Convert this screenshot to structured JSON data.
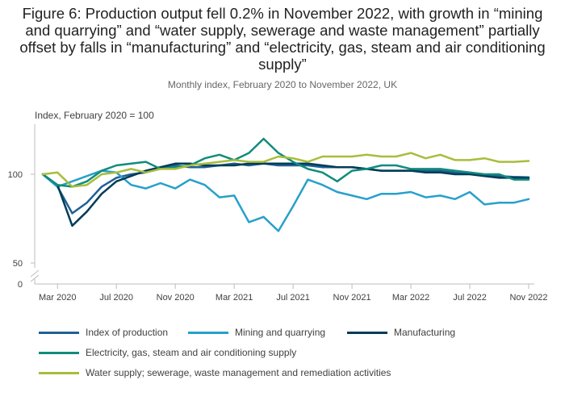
{
  "title": "Figure 6: Production output fell 0.2% in November 2022, with growth in “mining and quarrying” and “water supply, sewerage and waste management” partially offset by falls in “manufacturing” and “electricity, gas, steam and air conditioning supply”",
  "subtitle": "Monthly index, February 2020 to November 2022, UK",
  "chart_data": {
    "type": "line",
    "title": "Figure 6: Production output fell 0.2% in November 2022, with growth in “mining and quarrying” and “water supply, sewerage and waste management” partially offset by falls in “manufacturing” and “electricity, gas, steam and air conditioning supply”",
    "subtitle": "Monthly index, February 2020 to November 2022, UK",
    "ylabel": "Index, February 2020 = 100",
    "xlabel": "",
    "x": [
      "Feb 2020",
      "Mar 2020",
      "Apr 2020",
      "May 2020",
      "Jun 2020",
      "Jul 2020",
      "Aug 2020",
      "Sep 2020",
      "Oct 2020",
      "Nov 2020",
      "Dec 2020",
      "Jan 2021",
      "Feb 2021",
      "Mar 2021",
      "Apr 2021",
      "May 2021",
      "Jun 2021",
      "Jul 2021",
      "Aug 2021",
      "Sep 2021",
      "Oct 2021",
      "Nov 2021",
      "Dec 2021",
      "Jan 2022",
      "Feb 2022",
      "Mar 2022",
      "Apr 2022",
      "May 2022",
      "Jun 2022",
      "Jul 2022",
      "Aug 2022",
      "Sep 2022",
      "Oct 2022",
      "Nov 2022"
    ],
    "x_ticks": [
      "Mar 2020",
      "Jul 2020",
      "Nov 2020",
      "Mar 2021",
      "Jul 2021",
      "Nov 2021",
      "Mar 2022",
      "Jul 2022",
      "Nov 2022"
    ],
    "y_ticks": [
      0,
      50,
      100
    ],
    "axis_break": true,
    "ylim": [
      0,
      125
    ],
    "grid": false,
    "legend_position": "bottom",
    "series": [
      {
        "name": "Index of production",
        "color": "#206095",
        "values": [
          100,
          93,
          78,
          84,
          93,
          98,
          100,
          101,
          104,
          105,
          104,
          104,
          105,
          106,
          105,
          106,
          105,
          105,
          105,
          104,
          104,
          104,
          103,
          102,
          102,
          102,
          102,
          102,
          101,
          101,
          99,
          99,
          98.5,
          98.3
        ]
      },
      {
        "name": "Mining and quarrying",
        "color": "#27a0cc",
        "values": [
          100,
          93,
          96,
          99,
          102,
          101,
          94,
          92,
          95,
          92,
          97,
          94,
          87,
          88,
          73,
          76,
          68,
          82,
          97,
          94,
          90,
          88,
          86,
          89,
          89,
          90,
          87,
          88,
          86,
          90,
          83,
          84,
          84,
          86
        ]
      },
      {
        "name": "Manufacturing",
        "color": "#003c57",
        "values": [
          100,
          94,
          71,
          79,
          89,
          96,
          99,
          102,
          104,
          106,
          106,
          105,
          105,
          105,
          106,
          106,
          106,
          106,
          106,
          105,
          104,
          104,
          103,
          102,
          102,
          102,
          101,
          101,
          100,
          100,
          99,
          98,
          98,
          97.8
        ]
      },
      {
        "name": "Electricity, gas, steam and air conditioning supply",
        "color": "#118c7b",
        "values": [
          100,
          94,
          93,
          96,
          102,
          105,
          106,
          107,
          103,
          104,
          105,
          109,
          111,
          108,
          112,
          120,
          112,
          107,
          103,
          101,
          96,
          102,
          103,
          105,
          105,
          103,
          103,
          103,
          102,
          101,
          100,
          100,
          97,
          97
        ]
      },
      {
        "name": "Water supply; sewerage, waste management and remediation activities",
        "color": "#a8bd3a",
        "values": [
          100,
          101,
          93,
          94,
          100,
          101,
          103,
          101,
          103,
          103,
          105,
          106,
          107,
          108,
          107,
          107,
          110,
          109,
          107,
          110,
          110,
          110,
          111,
          110,
          110,
          112,
          109,
          111,
          108,
          108,
          109,
          107,
          107,
          107.5
        ]
      }
    ]
  },
  "legend": {
    "items": [
      "Index of production",
      "Mining and quarrying",
      "Manufacturing",
      "Electricity, gas, steam and air conditioning supply",
      "Water supply; sewerage, waste management and remediation activities"
    ]
  }
}
